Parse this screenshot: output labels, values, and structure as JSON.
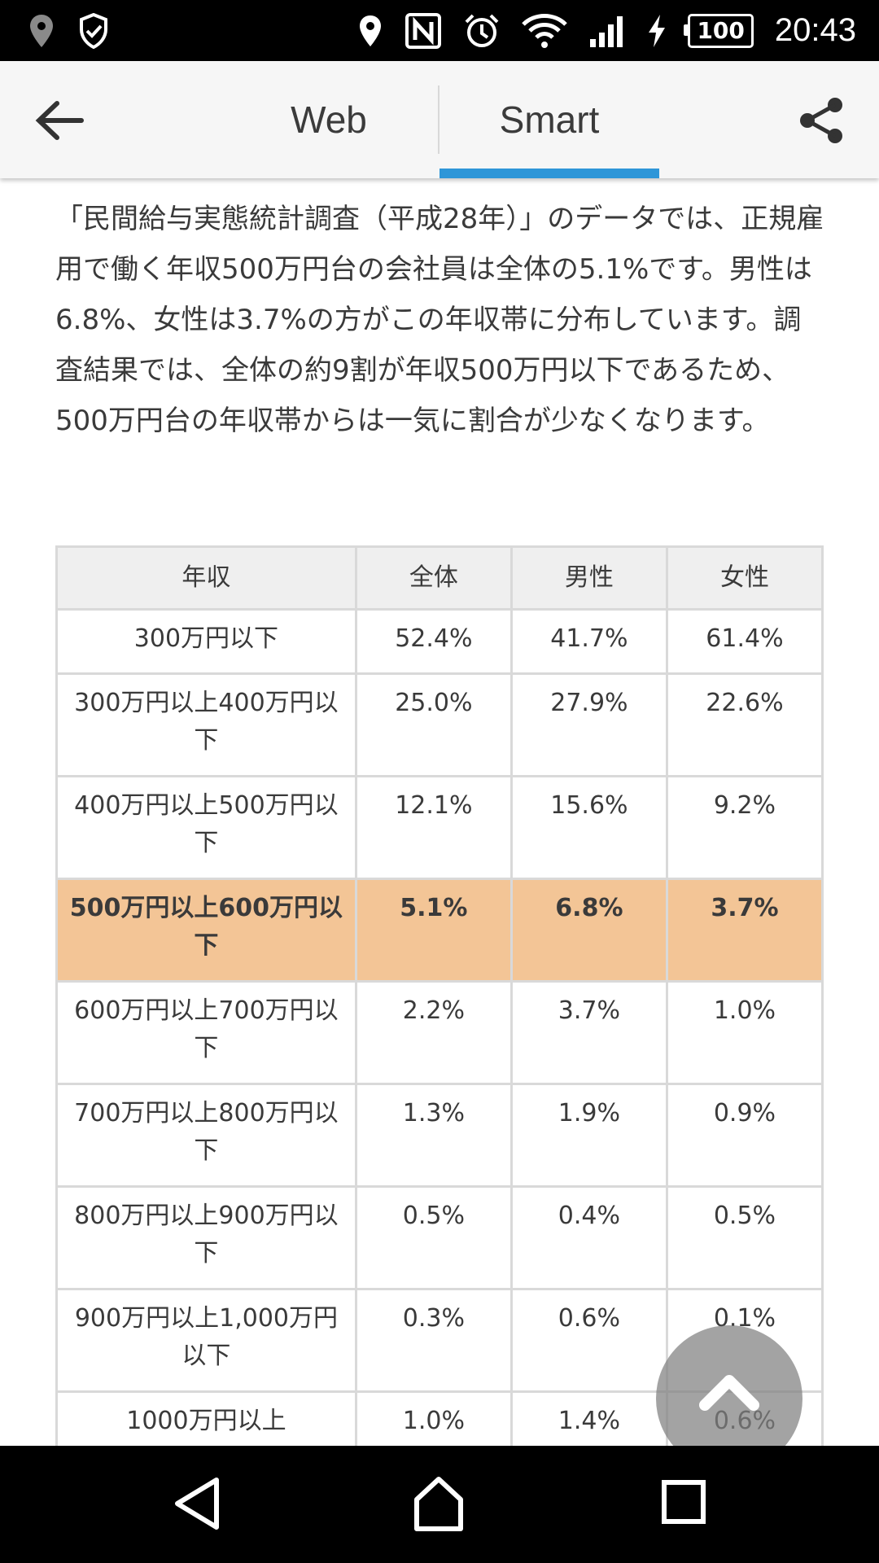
{
  "status_bar": {
    "time": "20:43",
    "battery": "100",
    "left_icons": [
      "location-pin-icon",
      "shield-check-icon"
    ],
    "right_icons": [
      "location-icon",
      "nfc-icon",
      "alarm-icon",
      "wifi-icon",
      "signal-icon",
      "charging-icon"
    ]
  },
  "app_bar": {
    "tabs": [
      {
        "label": "Web",
        "selected": false
      },
      {
        "label": "Smart",
        "selected": true
      }
    ],
    "accent_color": "#2e96d8"
  },
  "article": {
    "paragraph": "「民間給与実態統計調査（平成28年）」のデータでは、正規雇用で働く年収500万円台の会社員は全体の5.1%です。男性は6.8%、女性は3.7%の方がこの年収帯に分布しています。調査結果では、全体の約9割が年収500万円以下であるため、500万円台の年収帯からは一気に割合が少なくなります。"
  },
  "table": {
    "headers": [
      "年収",
      "全体",
      "男性",
      "女性"
    ],
    "rows": [
      {
        "cells": [
          "300万円以下",
          "52.4%",
          "41.7%",
          "61.4%"
        ]
      },
      {
        "cells": [
          "300万円以上400万円以下",
          "25.0%",
          "27.9%",
          "22.6%"
        ]
      },
      {
        "cells": [
          "400万円以上500万円以下",
          "12.1%",
          "15.6%",
          "9.2%"
        ]
      },
      {
        "cells": [
          "500万円以上600万円以下",
          "5.1%",
          "6.8%",
          "3.7%"
        ]
      },
      {
        "cells": [
          "600万円以上700万円以下",
          "2.2%",
          "3.7%",
          "1.0%"
        ]
      },
      {
        "cells": [
          "700万円以上800万円以下",
          "1.3%",
          "1.9%",
          "0.9%"
        ]
      },
      {
        "cells": [
          "800万円以上900万円以下",
          "0.5%",
          "0.4%",
          "0.5%"
        ]
      },
      {
        "cells": [
          "900万円以上1,000万円以下",
          "0.3%",
          "0.6%",
          "0.1%"
        ]
      },
      {
        "cells": [
          "1000万円以上",
          "1.0%",
          "1.4%",
          "0.6%"
        ]
      }
    ],
    "highlight_color": "#f3c596"
  }
}
